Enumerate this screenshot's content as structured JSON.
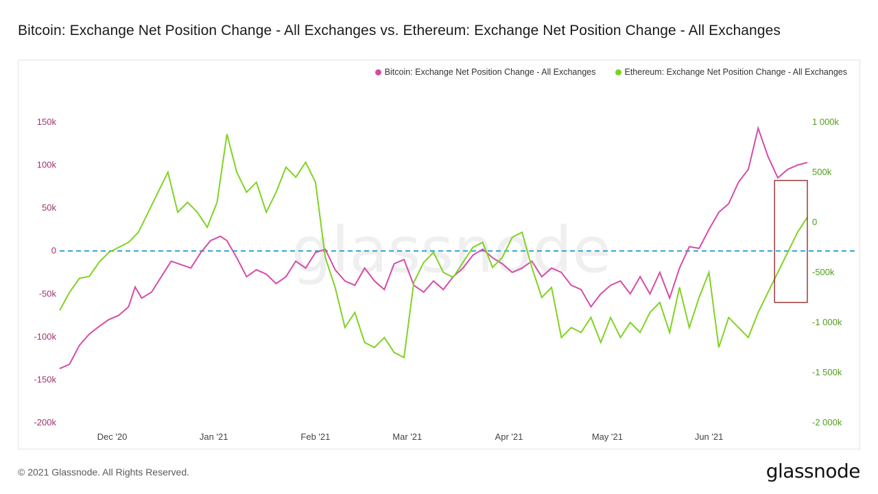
{
  "title": "Bitcoin: Exchange Net Position Change - All Exchanges vs. Ethereum: Exchange Net Position Change - All Exchanges",
  "footer": {
    "copyright": "© 2021 Glassnode. All Rights Reserved.",
    "brand": "glassnode",
    "watermark": "glassnode"
  },
  "colors": {
    "bitcoin": "#d64aa6",
    "ethereum": "#7ed321",
    "zero_line": "#27a3d6",
    "highlight_box": "#8b1a1a"
  },
  "chart_data": {
    "type": "line",
    "title": "Bitcoin: Exchange Net Position Change - All Exchanges vs. Ethereum: Exchange Net Position Change - All Exchanges",
    "legend_position": "top-right",
    "grid": false,
    "x_ticks": [
      "Dec '20",
      "Jan '21",
      "Feb '21",
      "Mar '21",
      "Apr '21",
      "May '21",
      "Jun '21"
    ],
    "x_range": [
      "2020-11-15",
      "2021-07-01"
    ],
    "y_left": {
      "ylim": [
        -200000,
        150000
      ],
      "ticks": [
        {
          "v": 150000,
          "label": "150k"
        },
        {
          "v": 100000,
          "label": "100k"
        },
        {
          "v": 50000,
          "label": "50k"
        },
        {
          "v": 0,
          "label": "0"
        },
        {
          "v": -50000,
          "label": "-50k"
        },
        {
          "v": -100000,
          "label": "-100k"
        },
        {
          "v": -150000,
          "label": "-150k"
        },
        {
          "v": -200000,
          "label": "-200k"
        }
      ]
    },
    "y_right": {
      "ylim": [
        -2000000,
        1000000
      ],
      "ticks": [
        {
          "v": 1000000,
          "label": "1 000k"
        },
        {
          "v": 500000,
          "label": "500k"
        },
        {
          "v": 0,
          "label": "0"
        },
        {
          "v": -500000,
          "label": "-500k"
        },
        {
          "v": -1000000,
          "label": "-1 000k"
        },
        {
          "v": -1500000,
          "label": "-1 500k"
        },
        {
          "v": -2000000,
          "label": "-2 000k"
        }
      ]
    },
    "reference_line": {
      "axis": "left",
      "value": 0,
      "style": "dashed"
    },
    "highlight_box": {
      "x_from": "2021-06-21",
      "x_to": "2021-07-01",
      "y_from": -60000,
      "y_to": 82000,
      "axis": "left"
    },
    "series": [
      {
        "name": "Bitcoin: Exchange Net Position Change - All Exchanges",
        "axis": "left",
        "color": "#d64aa6",
        "points": [
          [
            "2020-11-15",
            -137000
          ],
          [
            "2020-11-18",
            -132000
          ],
          [
            "2020-11-21",
            -110000
          ],
          [
            "2020-11-24",
            -97000
          ],
          [
            "2020-11-27",
            -88000
          ],
          [
            "2020-11-30",
            -80000
          ],
          [
            "2020-12-03",
            -75000
          ],
          [
            "2020-12-06",
            -65000
          ],
          [
            "2020-12-08",
            -42000
          ],
          [
            "2020-12-10",
            -55000
          ],
          [
            "2020-12-13",
            -48000
          ],
          [
            "2020-12-16",
            -30000
          ],
          [
            "2020-12-19",
            -12000
          ],
          [
            "2020-12-22",
            -16000
          ],
          [
            "2020-12-25",
            -20000
          ],
          [
            "2020-12-28",
            -2000
          ],
          [
            "2020-12-31",
            12000
          ],
          [
            "2021-01-03",
            17000
          ],
          [
            "2021-01-05",
            12000
          ],
          [
            "2021-01-08",
            -8000
          ],
          [
            "2021-01-11",
            -30000
          ],
          [
            "2021-01-14",
            -22000
          ],
          [
            "2021-01-17",
            -27000
          ],
          [
            "2021-01-20",
            -38000
          ],
          [
            "2021-01-23",
            -30000
          ],
          [
            "2021-01-26",
            -12000
          ],
          [
            "2021-01-29",
            -20000
          ],
          [
            "2021-02-01",
            -2000
          ],
          [
            "2021-02-04",
            2000
          ],
          [
            "2021-02-07",
            -22000
          ],
          [
            "2021-02-10",
            -35000
          ],
          [
            "2021-02-13",
            -40000
          ],
          [
            "2021-02-16",
            -20000
          ],
          [
            "2021-02-19",
            -35000
          ],
          [
            "2021-02-22",
            -45000
          ],
          [
            "2021-02-25",
            -15000
          ],
          [
            "2021-02-28",
            -10000
          ],
          [
            "2021-03-03",
            -40000
          ],
          [
            "2021-03-06",
            -48000
          ],
          [
            "2021-03-09",
            -35000
          ],
          [
            "2021-03-12",
            -45000
          ],
          [
            "2021-03-15",
            -30000
          ],
          [
            "2021-03-18",
            -20000
          ],
          [
            "2021-03-21",
            -5000
          ],
          [
            "2021-03-24",
            2000
          ],
          [
            "2021-03-27",
            -8000
          ],
          [
            "2021-03-30",
            -15000
          ],
          [
            "2021-04-02",
            -25000
          ],
          [
            "2021-04-05",
            -20000
          ],
          [
            "2021-04-08",
            -12000
          ],
          [
            "2021-04-11",
            -30000
          ],
          [
            "2021-04-14",
            -20000
          ],
          [
            "2021-04-17",
            -25000
          ],
          [
            "2021-04-20",
            -40000
          ],
          [
            "2021-04-23",
            -45000
          ],
          [
            "2021-04-26",
            -65000
          ],
          [
            "2021-04-29",
            -50000
          ],
          [
            "2021-05-02",
            -40000
          ],
          [
            "2021-05-05",
            -35000
          ],
          [
            "2021-05-08",
            -50000
          ],
          [
            "2021-05-11",
            -30000
          ],
          [
            "2021-05-14",
            -50000
          ],
          [
            "2021-05-17",
            -25000
          ],
          [
            "2021-05-20",
            -55000
          ],
          [
            "2021-05-23",
            -20000
          ],
          [
            "2021-05-26",
            5000
          ],
          [
            "2021-05-29",
            3000
          ],
          [
            "2021-06-01",
            25000
          ],
          [
            "2021-06-04",
            45000
          ],
          [
            "2021-06-07",
            55000
          ],
          [
            "2021-06-10",
            80000
          ],
          [
            "2021-06-13",
            95000
          ],
          [
            "2021-06-16",
            143000
          ],
          [
            "2021-06-19",
            110000
          ],
          [
            "2021-06-22",
            85000
          ],
          [
            "2021-06-25",
            95000
          ],
          [
            "2021-06-28",
            100000
          ],
          [
            "2021-07-01",
            103000
          ]
        ]
      },
      {
        "name": "Ethereum: Exchange Net Position Change - All Exchanges",
        "axis": "right",
        "color": "#7ed321",
        "points": [
          [
            "2020-11-15",
            -880000
          ],
          [
            "2020-11-18",
            -700000
          ],
          [
            "2020-11-21",
            -560000
          ],
          [
            "2020-11-24",
            -540000
          ],
          [
            "2020-11-27",
            -400000
          ],
          [
            "2020-11-30",
            -300000
          ],
          [
            "2020-12-03",
            -250000
          ],
          [
            "2020-12-06",
            -200000
          ],
          [
            "2020-12-09",
            -100000
          ],
          [
            "2020-12-12",
            100000
          ],
          [
            "2020-12-15",
            300000
          ],
          [
            "2020-12-18",
            500000
          ],
          [
            "2020-12-21",
            100000
          ],
          [
            "2020-12-24",
            200000
          ],
          [
            "2020-12-27",
            100000
          ],
          [
            "2020-12-30",
            -50000
          ],
          [
            "2021-01-02",
            200000
          ],
          [
            "2021-01-05",
            880000
          ],
          [
            "2021-01-08",
            500000
          ],
          [
            "2021-01-11",
            300000
          ],
          [
            "2021-01-14",
            400000
          ],
          [
            "2021-01-17",
            100000
          ],
          [
            "2021-01-20",
            300000
          ],
          [
            "2021-01-23",
            550000
          ],
          [
            "2021-01-26",
            450000
          ],
          [
            "2021-01-29",
            600000
          ],
          [
            "2021-02-01",
            400000
          ],
          [
            "2021-02-04",
            -350000
          ],
          [
            "2021-02-07",
            -650000
          ],
          [
            "2021-02-10",
            -1050000
          ],
          [
            "2021-02-13",
            -900000
          ],
          [
            "2021-02-16",
            -1200000
          ],
          [
            "2021-02-19",
            -1250000
          ],
          [
            "2021-02-22",
            -1150000
          ],
          [
            "2021-02-25",
            -1300000
          ],
          [
            "2021-02-28",
            -1350000
          ],
          [
            "2021-03-03",
            -600000
          ],
          [
            "2021-03-06",
            -400000
          ],
          [
            "2021-03-09",
            -300000
          ],
          [
            "2021-03-12",
            -500000
          ],
          [
            "2021-03-15",
            -550000
          ],
          [
            "2021-03-18",
            -400000
          ],
          [
            "2021-03-21",
            -250000
          ],
          [
            "2021-03-24",
            -200000
          ],
          [
            "2021-03-27",
            -450000
          ],
          [
            "2021-03-30",
            -350000
          ],
          [
            "2021-04-02",
            -150000
          ],
          [
            "2021-04-05",
            -100000
          ],
          [
            "2021-04-08",
            -450000
          ],
          [
            "2021-04-11",
            -750000
          ],
          [
            "2021-04-14",
            -650000
          ],
          [
            "2021-04-17",
            -1150000
          ],
          [
            "2021-04-20",
            -1050000
          ],
          [
            "2021-04-23",
            -1100000
          ],
          [
            "2021-04-26",
            -950000
          ],
          [
            "2021-04-29",
            -1200000
          ],
          [
            "2021-05-02",
            -950000
          ],
          [
            "2021-05-05",
            -1150000
          ],
          [
            "2021-05-08",
            -1000000
          ],
          [
            "2021-05-11",
            -1100000
          ],
          [
            "2021-05-14",
            -900000
          ],
          [
            "2021-05-17",
            -800000
          ],
          [
            "2021-05-20",
            -1100000
          ],
          [
            "2021-05-23",
            -650000
          ],
          [
            "2021-05-26",
            -1050000
          ],
          [
            "2021-05-29",
            -750000
          ],
          [
            "2021-06-01",
            -500000
          ],
          [
            "2021-06-04",
            -1250000
          ],
          [
            "2021-06-07",
            -950000
          ],
          [
            "2021-06-10",
            -1050000
          ],
          [
            "2021-06-13",
            -1150000
          ],
          [
            "2021-06-16",
            -900000
          ],
          [
            "2021-06-19",
            -700000
          ],
          [
            "2021-06-22",
            -500000
          ],
          [
            "2021-06-25",
            -300000
          ],
          [
            "2021-06-28",
            -100000
          ],
          [
            "2021-07-01",
            50000
          ]
        ]
      }
    ]
  }
}
